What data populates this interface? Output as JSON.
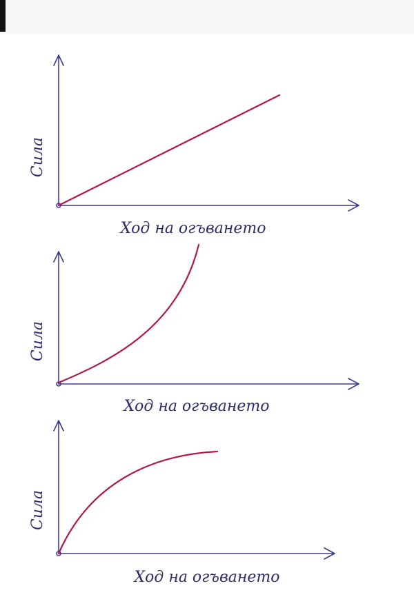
{
  "charts": [
    {
      "y_label": "Сила",
      "x_label": "Ход на огъването"
    },
    {
      "y_label": "Сила",
      "x_label": "Ход на огъването"
    },
    {
      "y_label": "Сила",
      "x_label": "Ход на огъването"
    }
  ]
}
